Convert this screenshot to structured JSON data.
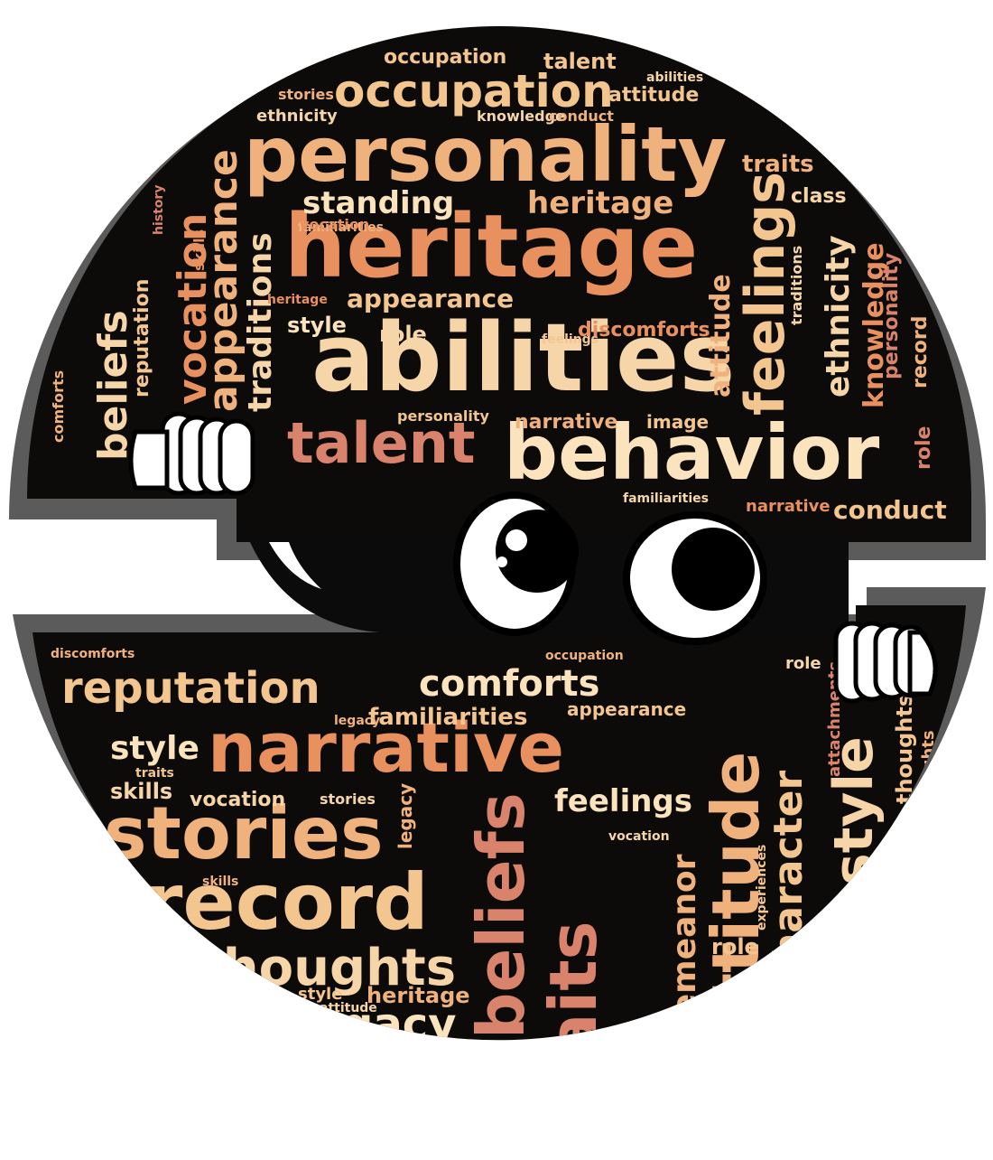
{
  "palette": {
    "background": "#ffffff",
    "outer_ring": "#5b5b5b",
    "inner_fill": "#0d0b0a",
    "word_colors": [
      "#f6d6a8",
      "#f0b27c",
      "#e8915f",
      "#d9826c",
      "#f3c690",
      "#fbe3bd"
    ],
    "eye_white": "#ffffff",
    "pupil": "#000000"
  },
  "icons": {
    "mascot_eyes": "peeking-eyes-icon",
    "left_hand": "left-hand-grip-icon",
    "right_hand": "right-hand-grip-icon"
  },
  "words": {
    "w01": "personality",
    "w02": "occupation",
    "w03": "heritage",
    "w04": "abilities",
    "w05": "behavior",
    "w06": "talent",
    "w07": "standing",
    "w08": "heritage",
    "w09": "appearance",
    "w10": "vocation",
    "w11": "appearance",
    "w12": "traditions",
    "w13": "feelings",
    "w14": "ethnicity",
    "w15": "knowledge",
    "w16": "beliefs",
    "w17": "reputation",
    "w18": "comforts",
    "w19": "narrative",
    "w20": "stories",
    "w21": "record",
    "w22": "thoughts",
    "w23": "legacy",
    "w24": "beliefs",
    "w25": "traits",
    "w26": "attitude",
    "w27": "character",
    "w28": "style",
    "w29": "feelings",
    "w30": "demeanor",
    "w31": "familiarities",
    "w32": "style",
    "w33": "conduct",
    "w34": "narrative",
    "w35": "attitude",
    "w36": "talent",
    "w37": "stories",
    "w38": "ethnicity",
    "w39": "occupation",
    "w40": "vocation",
    "w41": "occupation",
    "w42": "discomforts",
    "w43": "style",
    "w44": "role",
    "w45": "narrative",
    "w46": "image",
    "w47": "thoughts",
    "w48": "skills",
    "w49": "traits",
    "w50": "heritage",
    "w51": "beliefs",
    "w52": "demeanor",
    "w53": "skills",
    "w54": "image",
    "w55": "role",
    "w56": "thoughts",
    "w57": "style",
    "w58": "personality",
    "w59": "record",
    "w60": "class",
    "w61": "traits",
    "w62": "attitude",
    "w63": "knowledge",
    "w64": "legacy",
    "w65": "character",
    "w66": "history",
    "w67": "memories",
    "w68": "attachments",
    "w69": "experiences",
    "w70": "conduct",
    "w71": "reputation",
    "w72": "comforts",
    "w73": "role",
    "w74": "talent",
    "w75": "abilities",
    "w76": "familiarities",
    "w77": "feelings",
    "w78": "skills",
    "w79": "stories",
    "w80": "traditions"
  }
}
